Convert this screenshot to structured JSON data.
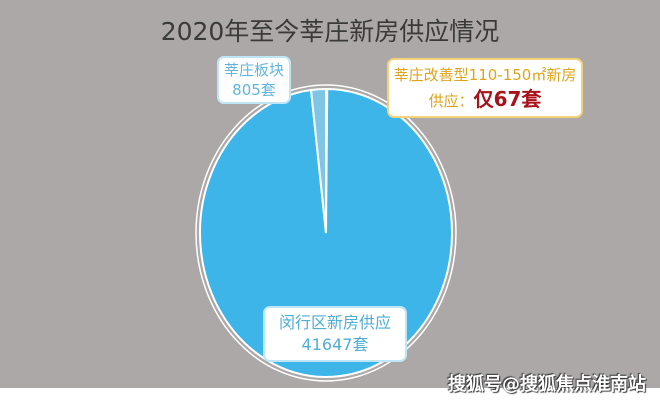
{
  "chart_data": {
    "type": "pie",
    "title": "2020年至今莘庄新房供应情况",
    "slices": [
      {
        "label": "莘庄改善型110-150㎡新房供应：",
        "value": 67,
        "value_text": "仅67套",
        "color": "#9fd3ea"
      },
      {
        "label": "闵行区新房供应",
        "value": 41647,
        "value_text": "41647套",
        "color": "#3db5e8"
      },
      {
        "label": "莘庄板块",
        "value": 805,
        "value_text": "805套",
        "color": "#7fc6e6"
      }
    ]
  },
  "watermark": "搜狐号@搜狐焦点淮南站"
}
